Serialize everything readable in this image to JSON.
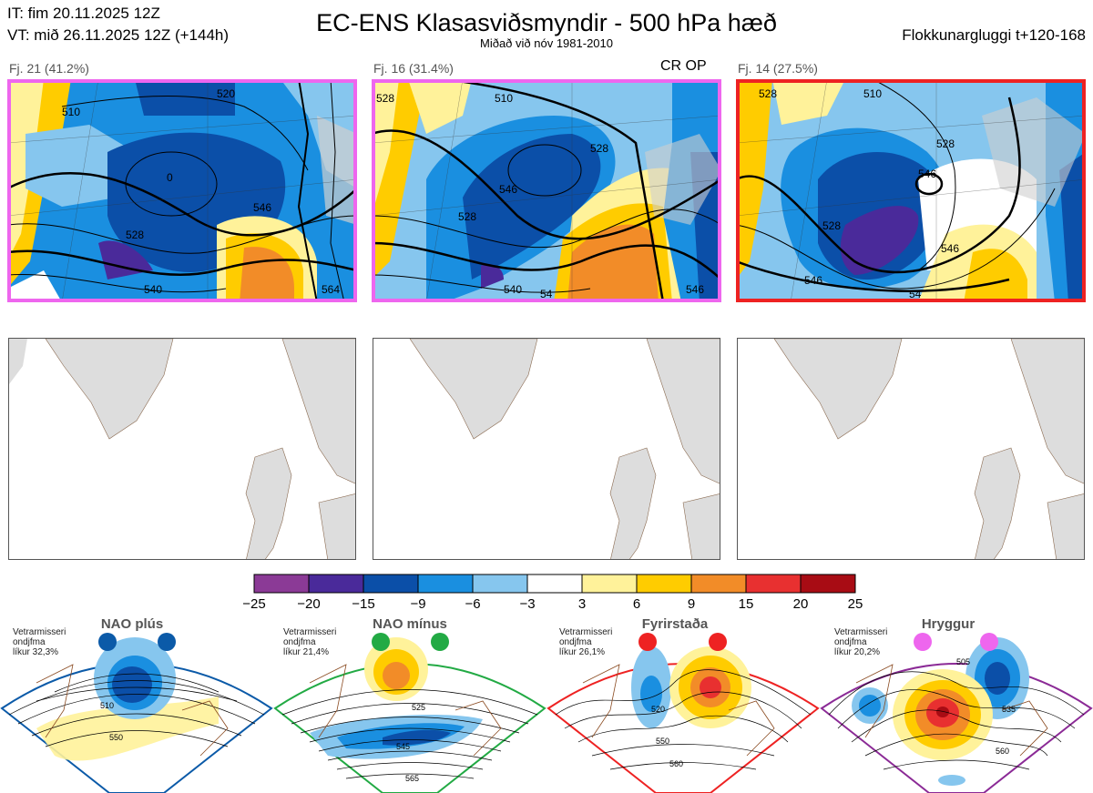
{
  "header": {
    "it_line": "IT: fim 20.11.2025 12Z",
    "vt_line": "VT: mið 26.11.2025 12Z  (+144h)",
    "title": "EC-ENS Klasasviðsmyndir - 500 hPa hæð",
    "subtitle": "Miðað við nóv 1981-2010",
    "window": "Flokkunargluggi t+120-168"
  },
  "clusters": [
    {
      "label": "Fj. 21 (41.2%)",
      "border_color": "#ee66ee",
      "badge": "",
      "contour_labels": [
        "510",
        "520",
        "528",
        "546",
        "540",
        "564",
        "0"
      ]
    },
    {
      "label": "Fj. 16 (31.4%)",
      "border_color": "#ee66ee",
      "badge": "CR OP",
      "contour_labels": [
        "528",
        "510",
        "528",
        "546",
        "528",
        "540",
        "54",
        "546"
      ]
    },
    {
      "label": "Fj. 14 (27.5%)",
      "border_color": "#ee2222",
      "badge": "",
      "contour_labels": [
        "528",
        "510",
        "528",
        "546",
        "528",
        "546",
        "546",
        "54"
      ]
    }
  ],
  "colorbar": {
    "ticks": [
      "−25",
      "−20",
      "−15",
      "−9",
      "−6",
      "−3",
      "3",
      "6",
      "9",
      "15",
      "20",
      "25"
    ],
    "colors": [
      "#8b3a96",
      "#4a2a9a",
      "#0b4fa8",
      "#1a8fe0",
      "#86c6ee",
      "#ffffff",
      "#fff29a",
      "#ffcc00",
      "#f28c28",
      "#e83030",
      "#a80c14"
    ]
  },
  "regimes": [
    {
      "name": "NAO plús",
      "season": "Vetrarmisseri",
      "type": "ondjfma",
      "prob": "líkur 32,3%",
      "color": "#0b5aa8",
      "contours": [
        "510",
        "550"
      ]
    },
    {
      "name": "NAO mínus",
      "season": "Vetrarmisseri",
      "type": "ondjfma",
      "prob": "líkur 21,4%",
      "color": "#22aa44",
      "contours": [
        "525",
        "545",
        "565"
      ]
    },
    {
      "name": "Fyrirstaða",
      "season": "Vetrarmisseri",
      "type": "ondjfma",
      "prob": "líkur 26,1%",
      "color": "#ee2222",
      "contours": [
        "520",
        "550",
        "560"
      ]
    },
    {
      "name": "Hryggur",
      "season": "Vetrarmisseri",
      "type": "ondjfma",
      "prob": "líkur 20,2%",
      "color": "#ee66ee",
      "contours": [
        "505",
        "535",
        "560"
      ]
    }
  ],
  "chart_data": {
    "type": "heatmap",
    "title": "EC-ENS Klasasviðsmyndir - 500 hPa hæð",
    "variable": "500 hPa height anomaly (dam)",
    "colorbar_range": [
      -25,
      25
    ],
    "colorbar_boundaries": [
      -25,
      -20,
      -15,
      -9,
      -6,
      -3,
      3,
      6,
      9,
      15,
      20,
      25
    ],
    "cluster_probabilities": [
      41.2,
      31.4,
      27.5
    ],
    "cluster_members": [
      21,
      16,
      14
    ],
    "regime_probabilities": [
      32.3,
      21.4,
      26.1,
      20.2
    ]
  }
}
